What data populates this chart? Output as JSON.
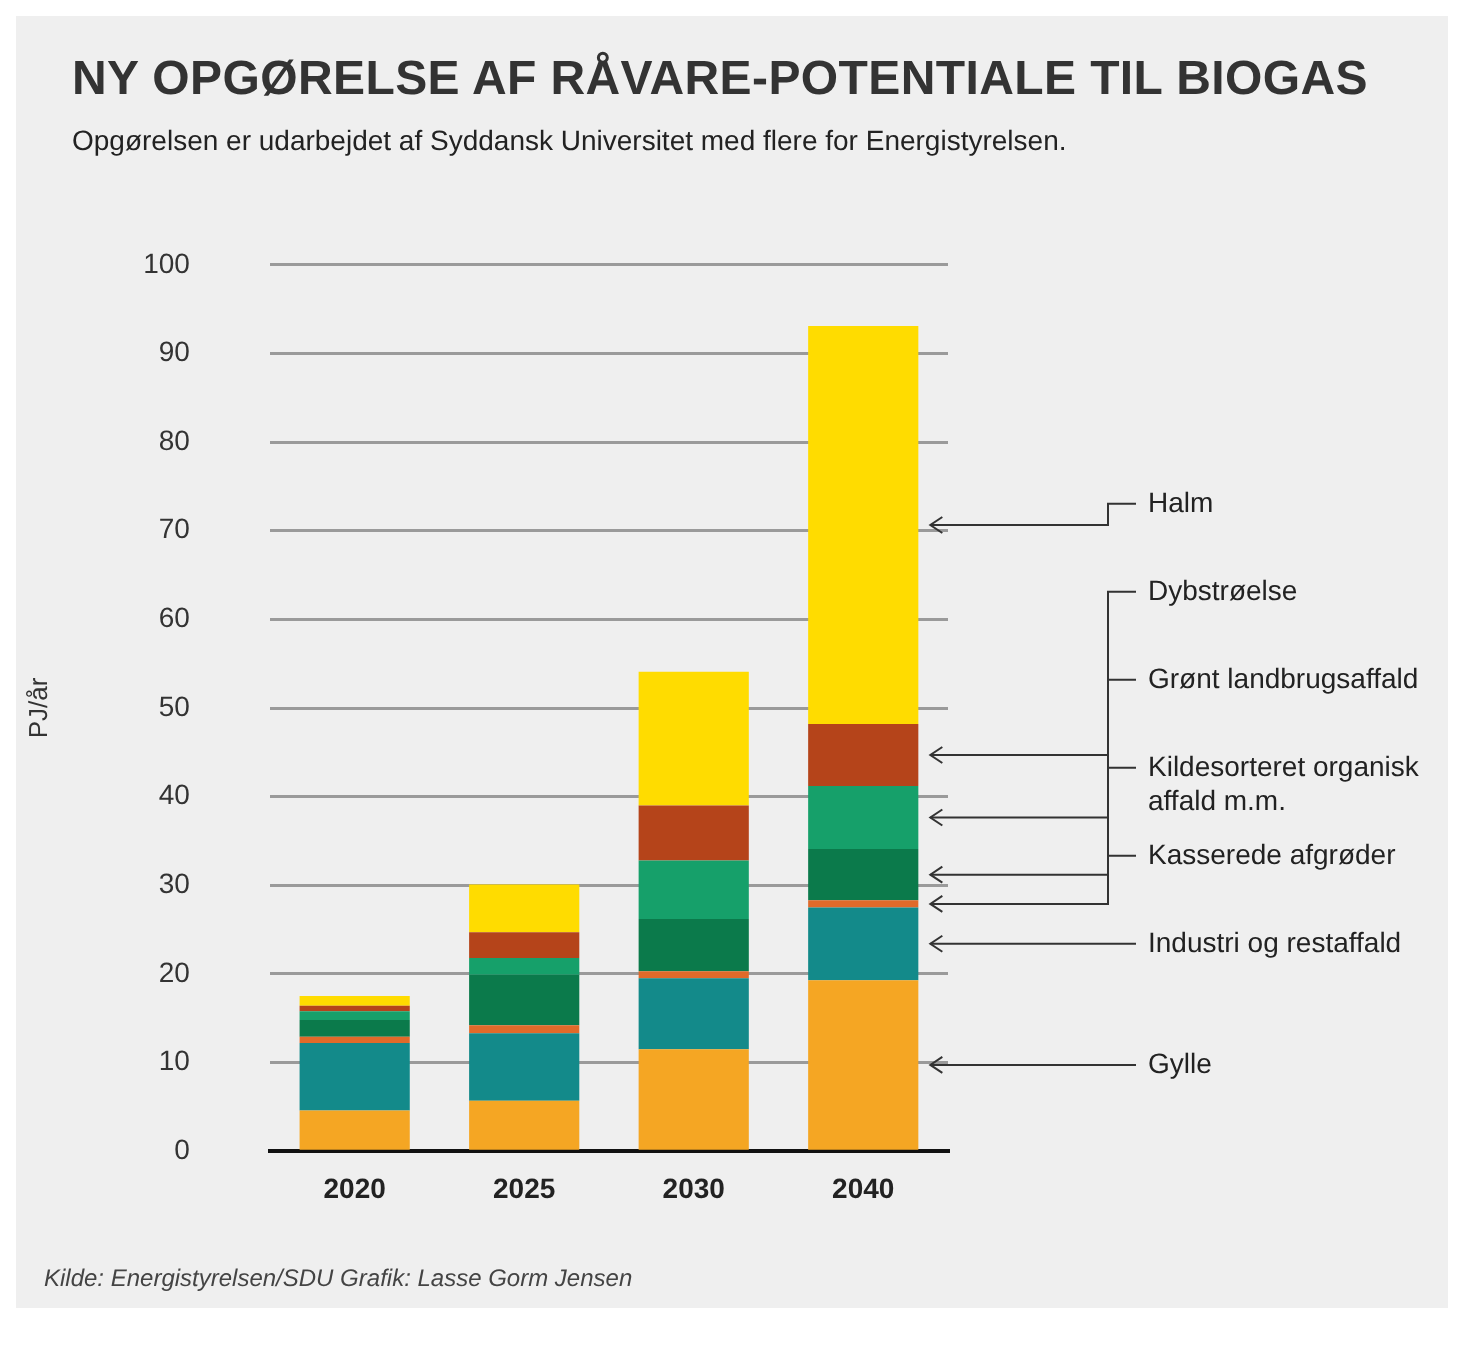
{
  "chart_data": {
    "type": "bar",
    "title": "NY OPGØRELSE AF RÅVARE-POTENTIALE TIL BIOGAS",
    "subtitle": "Opgørelsen er udarbejdet af Syddansk Universitet med flere for Energistyrelsen.",
    "ylabel": "PJ/år",
    "categories": [
      "2020",
      "2025",
      "2030",
      "2040"
    ],
    "stacked": true,
    "legend": "right",
    "grid": "y",
    "ylim": [
      0,
      100
    ],
    "yticks": [
      0,
      10,
      20,
      30,
      40,
      50,
      60,
      70,
      80,
      90,
      100
    ],
    "series": [
      {
        "name": "Gylle",
        "color": "#f5a623",
        "values": [
          4.6,
          5.7,
          11.5,
          19.3
        ]
      },
      {
        "name": "Industri og restaffald",
        "color": "#138a8a",
        "values": [
          7.6,
          7.6,
          8.0,
          8.2
        ]
      },
      {
        "name": "Kasserede afgrøder",
        "color": "#e06a2a",
        "values": [
          0.7,
          0.9,
          0.8,
          0.8
        ]
      },
      {
        "name": "Kildesorteret organisk affald m.m.",
        "color": "#0b7a4b",
        "values": [
          1.9,
          5.7,
          5.9,
          5.8
        ]
      },
      {
        "name": "Grønt landbrugsaffald",
        "color": "#16a06a",
        "values": [
          1.0,
          1.9,
          6.6,
          7.1
        ]
      },
      {
        "name": "Dybstrøelse",
        "color": "#b5441a",
        "values": [
          0.6,
          2.9,
          6.2,
          7.0
        ]
      },
      {
        "name": "Halm",
        "color": "#ffdc00",
        "values": [
          1.1,
          5.4,
          15.1,
          44.9
        ]
      }
    ],
    "annotations": [
      "Kilde: Energistyrelsen/SDU  Grafik: Lasse Gorm Jensen"
    ]
  }
}
